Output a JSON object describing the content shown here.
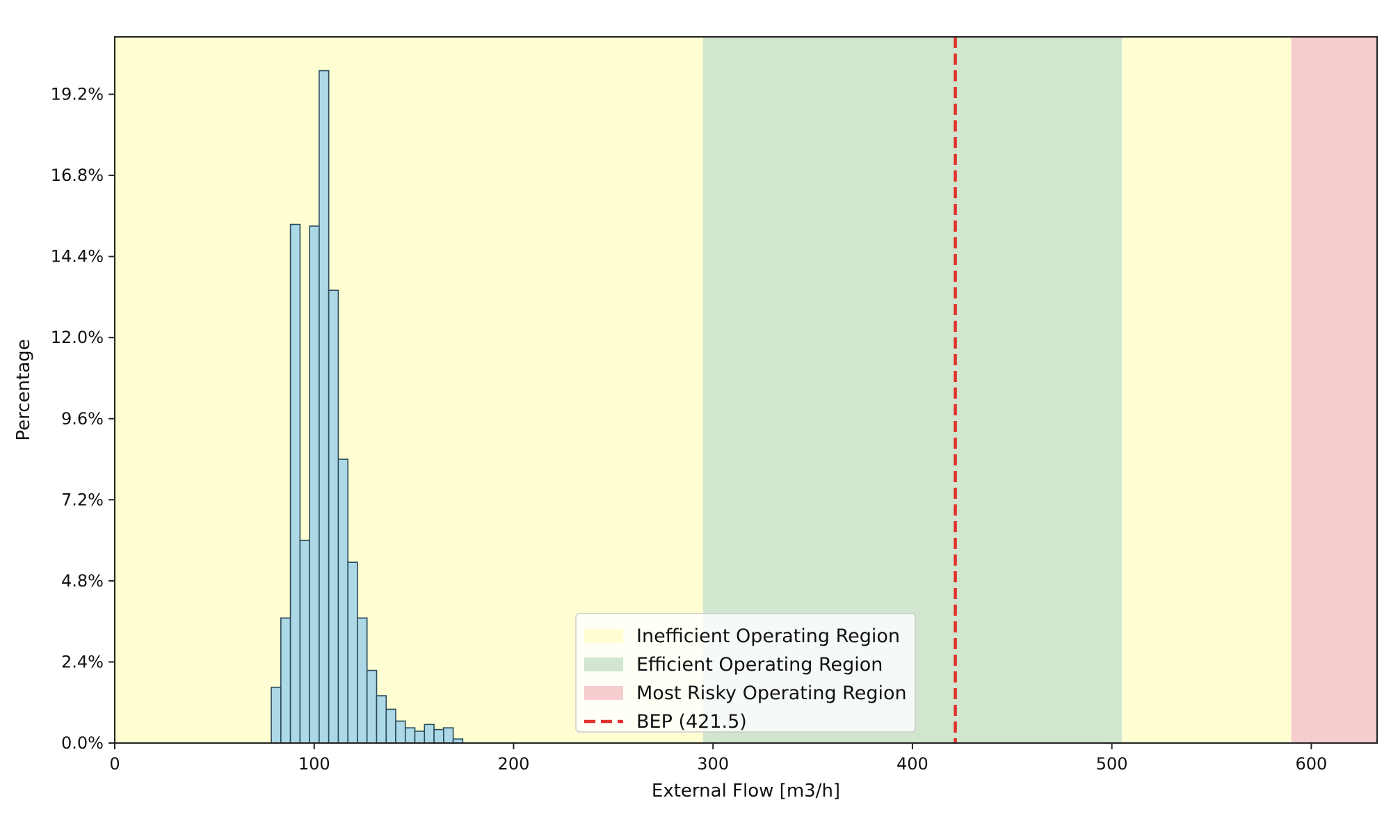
{
  "chart_data": {
    "type": "bar",
    "subtype": "histogram",
    "title": "",
    "xlabel": "External Flow [m3/h]",
    "ylabel": "Percentage",
    "xlim": [
      0,
      633
    ],
    "ylim": [
      0,
      20.9
    ],
    "x_ticks": [
      0,
      100,
      200,
      300,
      400,
      500,
      600
    ],
    "x_tick_labels": [
      "0",
      "100",
      "200",
      "300",
      "400",
      "500",
      "600"
    ],
    "y_ticks": [
      0,
      2.4,
      4.8,
      7.2,
      9.6,
      12.0,
      14.4,
      16.8,
      19.2
    ],
    "y_tick_labels": [
      "0.0%",
      "2.4%",
      "4.8%",
      "7.2%",
      "9.6%",
      "12.0%",
      "14.4%",
      "16.8%",
      "19.2%"
    ],
    "grid": false,
    "legend_position": "lower-center",
    "bin_width": 4.8,
    "bin_edges_start": 78.5,
    "values": [
      1.65,
      3.7,
      15.35,
      6.0,
      15.3,
      19.9,
      13.4,
      8.4,
      5.35,
      3.7,
      2.15,
      1.4,
      1.0,
      0.65,
      0.45,
      0.35,
      0.55,
      0.4,
      0.45,
      0.12
    ],
    "bar_color": "#add8e6",
    "bar_edge_color": "#2a4a5a",
    "regions": [
      {
        "name": "Inefficient Operating Region",
        "x0": 0,
        "x1": 295,
        "color": "#fefed2"
      },
      {
        "name": "Efficient Operating Region",
        "x0": 295,
        "x1": 505,
        "color": "#d1e5cf"
      },
      {
        "name": "Inefficient Operating Region",
        "x0": 505,
        "x1": 590,
        "color": "#fefed2"
      },
      {
        "name": "Most Risky Operating Region",
        "x0": 590,
        "x1": 633,
        "color": "#f5cdcf"
      }
    ],
    "bep": {
      "name": "BEP (421.5)",
      "x": 421.5,
      "color": "#e0302a"
    },
    "legend": [
      {
        "label": "Inefficient Operating Region",
        "color": "#fefed2",
        "kind": "patch"
      },
      {
        "label": "Efficient Operating Region",
        "color": "#d1e5cf",
        "kind": "patch"
      },
      {
        "label": "Most Risky Operating Region",
        "color": "#f5cdcf",
        "kind": "patch"
      },
      {
        "label": "BEP (421.5)",
        "color": "#e0302a",
        "kind": "dashed-line"
      }
    ]
  }
}
